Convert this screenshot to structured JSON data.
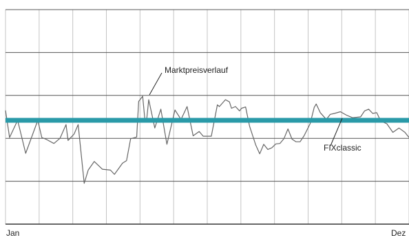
{
  "chart_data": {
    "type": "line",
    "title": "",
    "xlabel": "",
    "ylabel": "",
    "x_tick_labels": {
      "start": "Jan",
      "end": "Dez"
    },
    "grid": true,
    "x_grid_divisions": 12,
    "y_grid_divisions": 5,
    "y_range": [
      0,
      5
    ],
    "x_range": [
      0,
      1
    ],
    "annotations": [
      {
        "text": "Marktpreisverlauf",
        "series": "market"
      },
      {
        "text": "FIXclassic",
        "series": "fix"
      }
    ],
    "series": [
      {
        "name": "Marktpreisverlauf",
        "key": "market",
        "color": "#666666",
        "x": [
          0.0,
          0.01,
          0.03,
          0.05,
          0.08,
          0.09,
          0.1,
          0.12,
          0.135,
          0.15,
          0.155,
          0.165,
          0.17,
          0.18,
          0.195,
          0.205,
          0.22,
          0.24,
          0.26,
          0.27,
          0.29,
          0.3,
          0.31,
          0.325,
          0.33,
          0.34,
          0.345,
          0.35,
          0.355,
          0.365,
          0.37,
          0.385,
          0.4,
          0.42,
          0.435,
          0.45,
          0.465,
          0.48,
          0.49,
          0.51,
          0.525,
          0.53,
          0.545,
          0.555,
          0.56,
          0.57,
          0.58,
          0.585,
          0.595,
          0.605,
          0.62,
          0.63,
          0.64,
          0.65,
          0.66,
          0.67,
          0.68,
          0.69,
          0.7,
          0.71,
          0.72,
          0.73,
          0.74,
          0.755,
          0.765,
          0.77,
          0.78,
          0.795,
          0.805,
          0.815,
          0.83,
          0.845,
          0.86,
          0.88,
          0.89,
          0.9,
          0.91,
          0.92,
          0.93,
          0.945,
          0.96,
          0.975,
          0.99,
          1.0
        ],
        "y": [
          2.65,
          2.02,
          2.42,
          1.65,
          2.42,
          2.02,
          1.98,
          1.88,
          2.0,
          2.32,
          1.95,
          2.05,
          2.1,
          2.32,
          0.95,
          1.26,
          1.46,
          1.28,
          1.26,
          1.16,
          1.42,
          1.48,
          1.99,
          2.03,
          2.86,
          2.98,
          2.47,
          2.45,
          2.9,
          2.46,
          2.24,
          2.68,
          1.86,
          2.66,
          2.44,
          2.74,
          2.06,
          2.16,
          2.05,
          2.05,
          2.78,
          2.74,
          2.9,
          2.85,
          2.7,
          2.74,
          2.64,
          2.7,
          2.73,
          2.28,
          1.85,
          1.64,
          1.86,
          1.74,
          1.78,
          1.87,
          1.88,
          1.99,
          2.22,
          1.98,
          1.92,
          1.92,
          2.06,
          2.34,
          2.72,
          2.8,
          2.6,
          2.44,
          2.56,
          2.58,
          2.62,
          2.54,
          2.48,
          2.5,
          2.64,
          2.68,
          2.58,
          2.6,
          2.4,
          2.34,
          2.14,
          2.24,
          2.14,
          2.02
        ]
      },
      {
        "name": "FIXclassic",
        "key": "fix",
        "color": "#2a9aa8",
        "x": [
          0,
          1
        ],
        "y": [
          2.42,
          2.42
        ]
      }
    ]
  }
}
